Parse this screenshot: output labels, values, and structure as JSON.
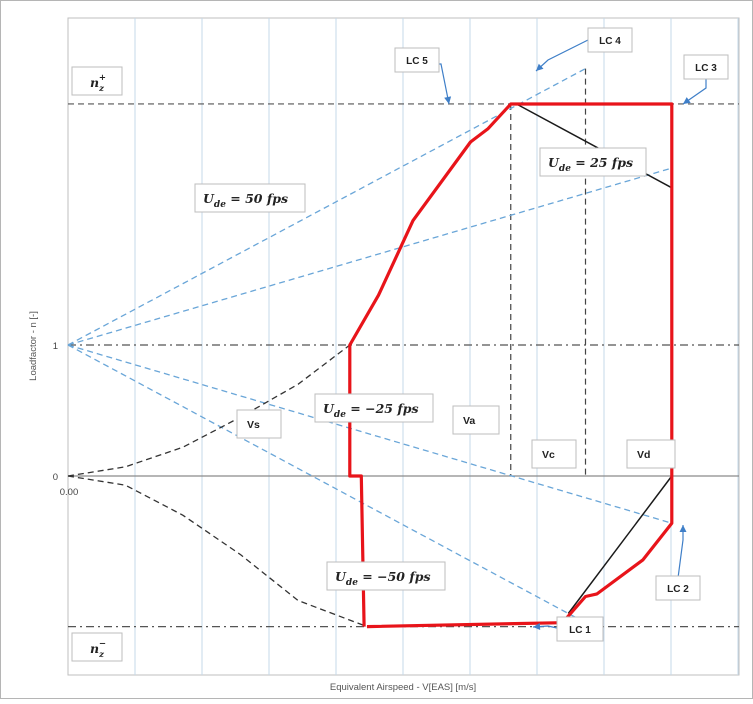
{
  "chart_data": {
    "type": "line",
    "title": "",
    "xlabel": "Equivalent Airspeed - V[EAS] [m/s]",
    "ylabel": "Loadfactor - n [-]",
    "y_tick_labels": [
      {
        "value": 1,
        "label": "1"
      },
      {
        "value": 0,
        "label": "0"
      }
    ],
    "x_tick_labels": [
      {
        "value": 0,
        "label": "0.00"
      }
    ],
    "grid": true,
    "axis_ranges_note": "x from 0 to about 11.6 grid units; y from about -1.55 to 3.3",
    "series": [
      {
        "role": "flight-envelope",
        "color": "#e8141a",
        "points": [
          [
            5.2,
            -1.15
          ],
          [
            8.6,
            -1.12
          ],
          [
            9.0,
            -0.92
          ],
          [
            9.2,
            -0.9
          ],
          [
            10.0,
            -0.64
          ],
          [
            10.5,
            -0.36
          ],
          [
            10.5,
            2.84
          ],
          [
            7.7,
            2.84
          ],
          [
            7.3,
            2.65
          ],
          [
            7.0,
            2.55
          ],
          [
            6.0,
            1.95
          ],
          [
            5.4,
            1.38
          ],
          [
            4.9,
            1.0
          ],
          [
            4.9,
            0.0
          ],
          [
            5.1,
            0.0
          ],
          [
            5.15,
            -1.15
          ]
        ]
      },
      {
        "role": "gust-line-black",
        "color": "#1a1a1a",
        "points": [
          [
            8.7,
            -1.05
          ],
          [
            10.5,
            0.0
          ]
        ]
      },
      {
        "role": "gust-line-black",
        "color": "#1a1a1a",
        "points": [
          [
            7.8,
            2.84
          ],
          [
            10.5,
            2.2
          ]
        ]
      },
      {
        "role": "stall-curve-positive",
        "color": "#333333",
        "points": [
          [
            0.0,
            0.0
          ],
          [
            1.0,
            0.07
          ],
          [
            2.0,
            0.22
          ],
          [
            3.0,
            0.45
          ],
          [
            4.0,
            0.7
          ],
          [
            4.9,
            1.0
          ]
        ]
      },
      {
        "role": "stall-curve-negative",
        "color": "#333333",
        "points": [
          [
            0.0,
            0.0
          ],
          [
            1.0,
            -0.07
          ],
          [
            2.0,
            -0.3
          ],
          [
            3.0,
            -0.6
          ],
          [
            4.0,
            -0.95
          ],
          [
            5.2,
            -1.15
          ]
        ]
      },
      {
        "role": "gust-line-blue",
        "color": "#6aa6d8",
        "points": [
          [
            0.0,
            1.0
          ],
          [
            9.0,
            3.11
          ]
        ]
      },
      {
        "role": "gust-line-blue",
        "color": "#6aa6d8",
        "points": [
          [
            0.0,
            1.0
          ],
          [
            10.5,
            2.35
          ]
        ]
      },
      {
        "role": "gust-line-blue",
        "color": "#6aa6d8",
        "points": [
          [
            0.0,
            1.0
          ],
          [
            10.5,
            -0.36
          ]
        ]
      },
      {
        "role": "gust-line-blue",
        "color": "#6aa6d8",
        "points": [
          [
            0.0,
            1.0
          ],
          [
            9.0,
            -1.12
          ]
        ]
      }
    ],
    "reference_lines": [
      {
        "kind": "horizontal",
        "y": 2.84,
        "label": "n_z^+"
      },
      {
        "kind": "horizontal",
        "y": 1.0
      },
      {
        "kind": "horizontal",
        "y": -1.15,
        "label": "n_z^-"
      },
      {
        "kind": "vertical",
        "x": 7.7
      },
      {
        "kind": "vertical",
        "x": 9.0
      }
    ],
    "annotations": {
      "speed_labels": [
        "Vs",
        "Va",
        "Vc",
        "Vd"
      ],
      "load_cases": [
        "LC 1",
        "LC 2",
        "LC 3",
        "LC 4",
        "LC 5"
      ],
      "gust_labels": [
        {
          "base": "U",
          "sub": "de",
          "text": " = 50 fps"
        },
        {
          "base": "U",
          "sub": "de",
          "text": " = 25 fps"
        },
        {
          "base": "U",
          "sub": "de",
          "text": " = −25 fps"
        },
        {
          "base": "U",
          "sub": "de",
          "text": " = −50 fps"
        }
      ],
      "limit_labels": [
        {
          "base": "n",
          "sub": "z",
          "sup": "+"
        },
        {
          "base": "n",
          "sub": "z",
          "sup": "−"
        }
      ]
    }
  }
}
